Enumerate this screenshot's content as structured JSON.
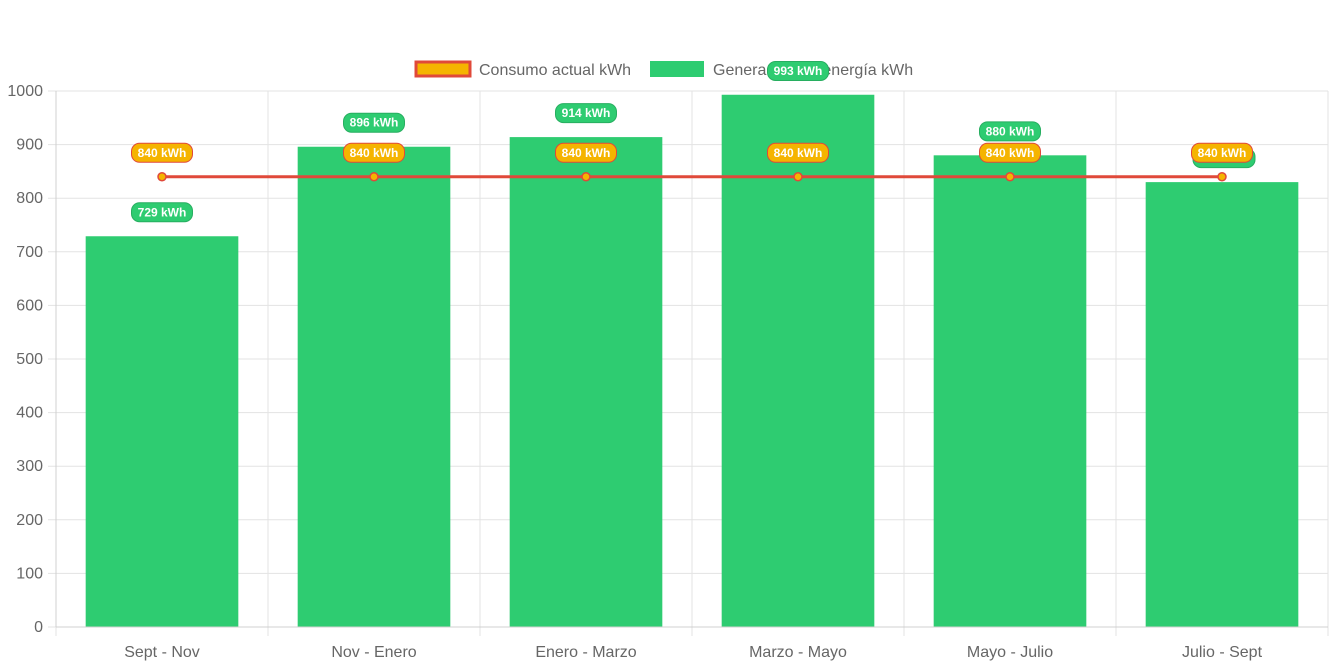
{
  "chart_data": {
    "type": "bar",
    "categories": [
      "Sept - Nov",
      "Nov - Enero",
      "Enero - Marzo",
      "Marzo - Mayo",
      "Mayo - Julio",
      "Julio - Sept"
    ],
    "series": [
      {
        "name": "Consumo actual kWh",
        "kind": "line",
        "values": [
          840,
          840,
          840,
          840,
          840,
          840
        ],
        "labels": [
          "840 kWh",
          "840 kWh",
          "840 kWh",
          "840 kWh",
          "840 kWh",
          "840 kWh"
        ],
        "line_color": "#e0493a",
        "fill_color": "#f5b400"
      },
      {
        "name": "Generación de energía kWh",
        "kind": "bar",
        "values": [
          729,
          896,
          914,
          993,
          880,
          830
        ],
        "labels": [
          "729 kWh",
          "896 kWh",
          "914 kWh",
          "993 kWh",
          "880 kWh",
          ""
        ],
        "color": "#2ecc71",
        "label_border": "#27ae60"
      }
    ],
    "y_ticks": [
      "0",
      "100",
      "200",
      "300",
      "400",
      "500",
      "600",
      "700",
      "800",
      "900",
      "1000"
    ],
    "ylim": [
      0,
      1000
    ],
    "grid": true,
    "legend": "top-center",
    "title": "",
    "xlabel": "",
    "ylabel": ""
  }
}
